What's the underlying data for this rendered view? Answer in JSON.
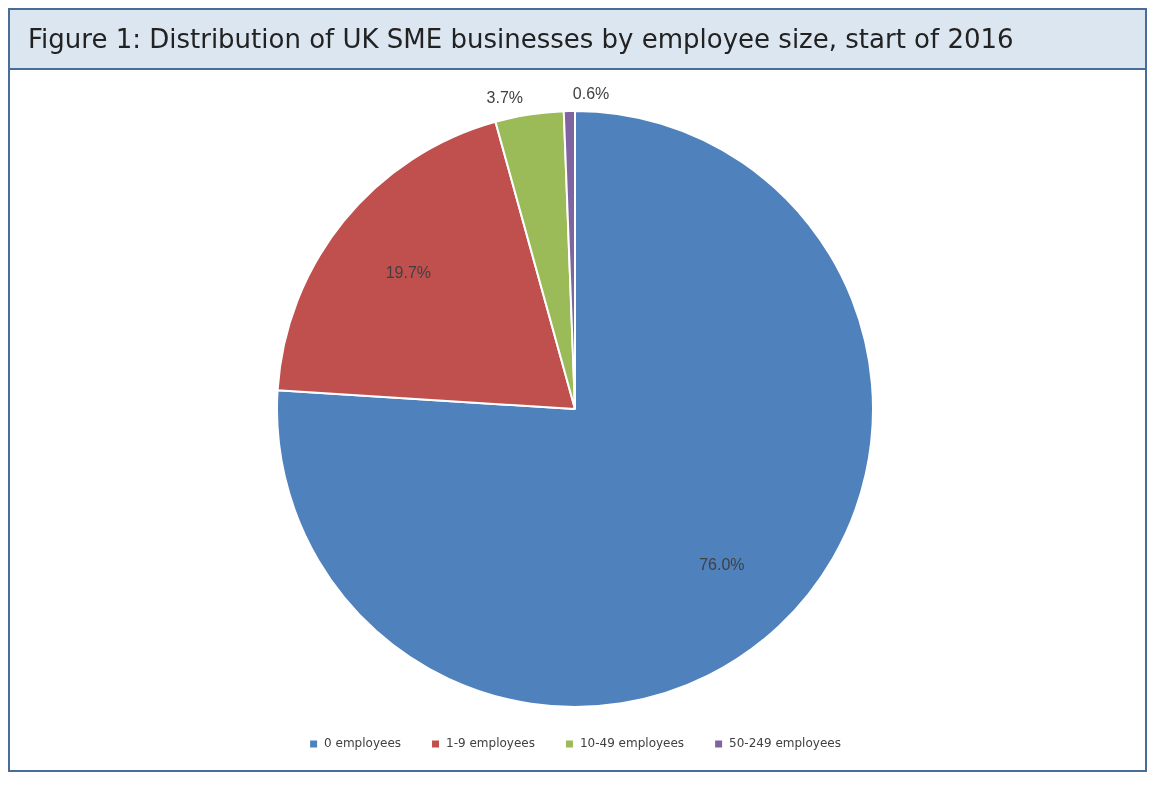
{
  "chart_data": {
    "type": "pie",
    "title": "Figure 1: Distribution of UK SME businesses by employee size, start of 2016",
    "categories": [
      "0 employees",
      "1-9 employees",
      "10-49 employees",
      "50-249 employees"
    ],
    "values": [
      76.0,
      19.7,
      3.7,
      0.6
    ],
    "colors": [
      "#4f81bd",
      "#c0504d",
      "#9bbb59",
      "#8064a2"
    ],
    "value_labels": [
      "76.0%",
      "19.7%",
      "3.7%",
      "0.6%"
    ],
    "legend": "bottom"
  }
}
